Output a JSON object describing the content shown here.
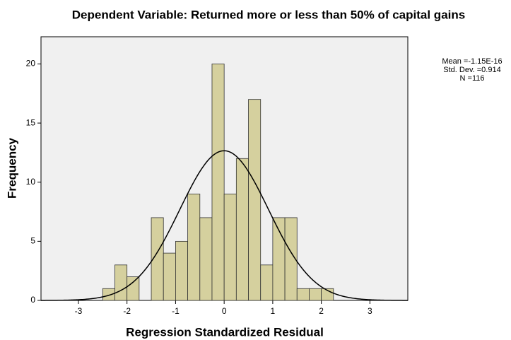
{
  "chart_data": {
    "type": "histogram",
    "title": "Dependent Variable: Returned more or less than 50% of capital gains",
    "x_label": "Regression Standardized Residual",
    "y_label": "Frequency",
    "bins": [
      -2.5,
      -2.25,
      -2.0,
      -1.75,
      -1.5,
      -1.25,
      -1.0,
      -0.75,
      -0.5,
      -0.25,
      0,
      0.25,
      0.5,
      0.75,
      1.0,
      1.25,
      1.5,
      1.75,
      2.0,
      2.25
    ],
    "values": [
      1,
      3,
      2,
      0,
      7,
      4,
      5,
      9,
      7,
      20,
      9,
      12,
      17,
      3,
      7,
      7,
      1,
      1,
      1
    ],
    "color": "#d5d09e",
    "xlim": [
      -3.77,
      3.78
    ],
    "ylim": [
      0,
      22.3
    ],
    "xticks": [
      -3,
      -2,
      -1,
      0,
      1,
      2,
      3
    ],
    "yticks": [
      0,
      5,
      10,
      15,
      20
    ],
    "normal_curve": {
      "mean": {
        "value": -1.15e-16,
        "label": "Mean =-1.15E-16"
      },
      "sd": {
        "value": 0.914,
        "label": "Std. Dev. =0.914"
      },
      "n": {
        "value": 116,
        "label": "N =116"
      }
    }
  }
}
